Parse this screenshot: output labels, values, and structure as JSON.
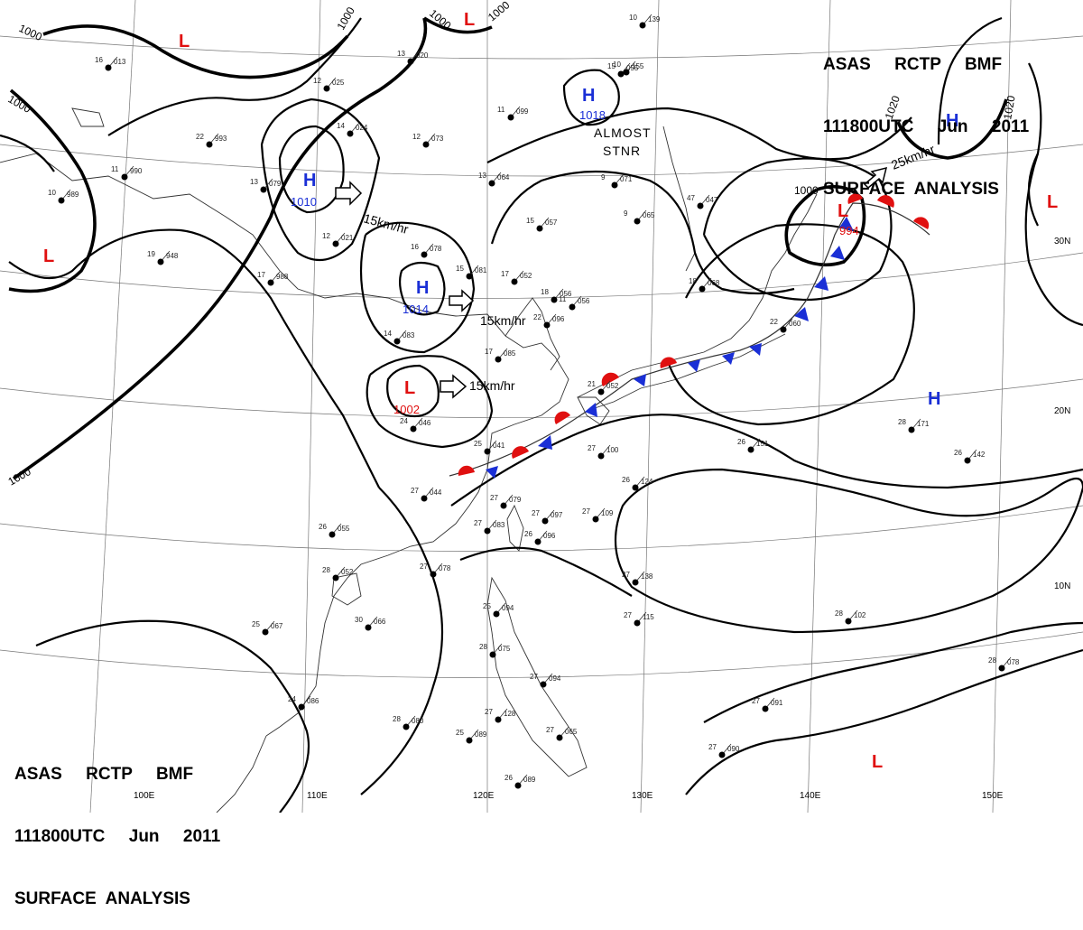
{
  "header": {
    "line1": "ASAS     RCTP     BMF",
    "line2": "111800UTC     Jun     2011",
    "line3": "SURFACE  ANALYSIS"
  },
  "footer": {
    "line1": "ASAS     RCTP     BMF",
    "line2": "111800UTC     Jun     2011",
    "line3": "SURFACE  ANALYSIS"
  },
  "colors": {
    "high": "#1a2fd6",
    "low": "#e01010",
    "cold_front": "#1a2fd6",
    "warm_front": "#e01010",
    "isobar": "#000000"
  },
  "longitudes": [
    "100E",
    "110E",
    "120E",
    "130E",
    "140E",
    "150E"
  ],
  "latitudes": [
    "30N",
    "20N",
    "10N"
  ],
  "isobar_labels": [
    "1000",
    "1000",
    "1000",
    "1000",
    "1000",
    "1000",
    "1020",
    "1020"
  ],
  "pressure_systems": [
    {
      "type": "H",
      "value": "1010"
    },
    {
      "type": "H",
      "value": "1014"
    },
    {
      "type": "H",
      "value": "1018"
    },
    {
      "type": "L",
      "value": "1002"
    },
    {
      "type": "L",
      "value": "994"
    },
    {
      "type": "H",
      "value": ""
    },
    {
      "type": "H",
      "value": ""
    },
    {
      "type": "L",
      "value": ""
    },
    {
      "type": "L",
      "value": ""
    },
    {
      "type": "L",
      "value": ""
    },
    {
      "type": "L",
      "value": ""
    },
    {
      "type": "L",
      "value": ""
    }
  ],
  "movements": [
    "15km/hr",
    "15km/hr",
    "15km/hr",
    "25km/hr"
  ],
  "annotation": {
    "line1": "ALMOST",
    "line2": "STNR"
  },
  "stations": [
    {
      "t": "16",
      "p": "013"
    },
    {
      "t": "12",
      "p": "025"
    },
    {
      "t": "13",
      "p": "020"
    },
    {
      "t": "22",
      "p": "993"
    },
    {
      "t": "14",
      "p": "024"
    },
    {
      "t": "12",
      "p": "073"
    },
    {
      "t": "11",
      "p": "099"
    },
    {
      "t": "15",
      "p": "055"
    },
    {
      "t": "13",
      "p": "064"
    },
    {
      "t": "15",
      "p": "057"
    },
    {
      "t": "16",
      "p": "078"
    },
    {
      "t": "15",
      "p": "081"
    },
    {
      "t": "17",
      "p": "052"
    },
    {
      "t": "19",
      "p": "948"
    },
    {
      "t": "17",
      "p": "988"
    },
    {
      "t": "12",
      "p": "021"
    },
    {
      "t": "14",
      "p": "083"
    },
    {
      "t": "17",
      "p": "085"
    },
    {
      "t": "18",
      "p": "056"
    },
    {
      "t": "21",
      "p": "052"
    },
    {
      "t": "24",
      "p": "046"
    },
    {
      "t": "25",
      "p": "041"
    },
    {
      "t": "27",
      "p": "044"
    },
    {
      "t": "27",
      "p": "100"
    },
    {
      "t": "27",
      "p": "109"
    },
    {
      "t": "26",
      "p": "124"
    },
    {
      "t": "26",
      "p": "055"
    },
    {
      "t": "28",
      "p": "052"
    },
    {
      "t": "27",
      "p": "083"
    },
    {
      "t": "27",
      "p": "097"
    },
    {
      "t": "27",
      "p": "078"
    },
    {
      "t": "25",
      "p": "067"
    },
    {
      "t": "30",
      "p": "066"
    },
    {
      "t": "25",
      "p": "094"
    },
    {
      "t": "28",
      "p": "075"
    },
    {
      "t": "24",
      "p": "086"
    },
    {
      "t": "28",
      "p": "080"
    },
    {
      "t": "25",
      "p": "089"
    },
    {
      "t": "26",
      "p": "089"
    },
    {
      "t": "27",
      "p": "065"
    },
    {
      "t": "27",
      "p": "094"
    },
    {
      "t": "27",
      "p": "128"
    },
    {
      "t": "27",
      "p": "138"
    },
    {
      "t": "27",
      "p": "115"
    },
    {
      "t": "28",
      "p": "102"
    },
    {
      "t": "27",
      "p": "090"
    },
    {
      "t": "27",
      "p": "091"
    },
    {
      "t": "28",
      "p": "078"
    },
    {
      "t": "26",
      "p": "151"
    },
    {
      "t": "28",
      "p": "171"
    },
    {
      "t": "26",
      "p": "142"
    },
    {
      "t": "9",
      "p": "071"
    },
    {
      "t": "9",
      "p": "065"
    },
    {
      "t": "47",
      "p": "047"
    },
    {
      "t": "18",
      "p": "068"
    },
    {
      "t": "10",
      "p": "139"
    },
    {
      "t": "10",
      "p": "155"
    },
    {
      "t": "22",
      "p": "060"
    },
    {
      "t": "22",
      "p": "096"
    },
    {
      "t": "11",
      "p": "990"
    },
    {
      "t": "10",
      "p": "989"
    },
    {
      "t": "13",
      "p": "079"
    },
    {
      "t": "11",
      "p": "056"
    },
    {
      "t": "27",
      "p": "079"
    },
    {
      "t": "26",
      "p": "096"
    }
  ]
}
